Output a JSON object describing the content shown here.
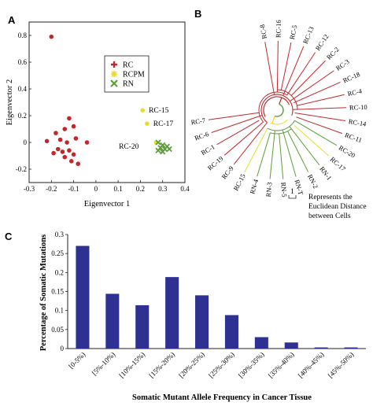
{
  "panels": {
    "a": "A",
    "b": "B",
    "c": "C"
  },
  "chart_data": [
    {
      "type": "scatter",
      "panel": "A",
      "xlabel": "Eigenvector 1",
      "ylabel": "Eigenvector 2",
      "xlim": [
        -0.3,
        0.4
      ],
      "ylim": [
        -0.3,
        0.9
      ],
      "xticks": [
        "-0.3",
        "-0.2",
        "-0.1",
        "0",
        "0.1",
        "0.2",
        "0.3",
        "0.4"
      ],
      "yticks": [
        "-0.2",
        "0",
        "0.2",
        "0.4",
        "0.6",
        "0.8"
      ],
      "xtick_values": [
        -0.3,
        -0.2,
        -0.1,
        0,
        0.1,
        0.2,
        0.3,
        0.4
      ],
      "ytick_values": [
        -0.2,
        0,
        0.2,
        0.4,
        0.6,
        0.8
      ],
      "legend": {
        "placement": "top-right"
      },
      "series": [
        {
          "name": "RC",
          "marker": "plus",
          "color": "#c0282d",
          "points": [
            [
              -0.2,
              0.79
            ],
            [
              -0.12,
              0.18
            ],
            [
              -0.1,
              0.12
            ],
            [
              -0.14,
              0.1
            ],
            [
              -0.18,
              0.07
            ],
            [
              -0.22,
              0.01
            ],
            [
              -0.16,
              0.02
            ],
            [
              -0.13,
              0.0
            ],
            [
              -0.09,
              0.03
            ],
            [
              -0.04,
              0.0
            ],
            [
              -0.17,
              -0.05
            ],
            [
              -0.15,
              -0.07
            ],
            [
              -0.12,
              -0.06
            ],
            [
              -0.1,
              -0.09
            ],
            [
              -0.14,
              -0.11
            ],
            [
              -0.11,
              -0.14
            ],
            [
              -0.08,
              -0.16
            ],
            [
              -0.19,
              -0.08
            ]
          ]
        },
        {
          "name": "RCPM",
          "marker": "circle",
          "color": "#e8dd2a",
          "points": [
            [
              0.21,
              0.24
            ],
            [
              0.23,
              0.14
            ],
            [
              0.27,
              0.0
            ]
          ]
        },
        {
          "name": "RN",
          "marker": "x",
          "color": "#5a9e3a",
          "points": [
            [
              0.28,
              0.0
            ],
            [
              0.3,
              -0.02
            ],
            [
              0.31,
              -0.05
            ],
            [
              0.29,
              -0.04
            ],
            [
              0.32,
              -0.03
            ],
            [
              0.3,
              -0.07
            ],
            [
              0.33,
              -0.05
            ],
            [
              0.28,
              -0.06
            ]
          ]
        }
      ],
      "annotations": [
        {
          "text": "RC-15",
          "x": 0.22,
          "y": 0.24
        },
        {
          "text": "RC-17",
          "x": 0.24,
          "y": 0.14
        },
        {
          "text": "RC-20",
          "x": 0.2,
          "y": -0.03
        }
      ]
    },
    {
      "type": "dendrogram",
      "panel": "B",
      "leaves": [
        {
          "label": "RC-8",
          "color": "#c0282d"
        },
        {
          "label": "RC-16",
          "color": "#c0282d"
        },
        {
          "label": "RC-5",
          "color": "#c0282d"
        },
        {
          "label": "RC-13",
          "color": "#c0282d"
        },
        {
          "label": "RC-12",
          "color": "#c0282d"
        },
        {
          "label": "RC-2",
          "color": "#c0282d"
        },
        {
          "label": "RC-3",
          "color": "#c0282d"
        },
        {
          "label": "RC-18",
          "color": "#c0282d"
        },
        {
          "label": "RC-4",
          "color": "#c0282d"
        },
        {
          "label": "RC-10",
          "color": "#c0282d"
        },
        {
          "label": "RC-14",
          "color": "#c0282d"
        },
        {
          "label": "RC-11",
          "color": "#c0282d"
        },
        {
          "label": "RC-20",
          "color": "#5a9e3a"
        },
        {
          "label": "RC-17",
          "color": "#e8dd2a"
        },
        {
          "label": "RN-1",
          "color": "#5a9e3a"
        },
        {
          "label": "RN-2",
          "color": "#5a9e3a"
        },
        {
          "label": "RN-T",
          "color": "#5a9e3a"
        },
        {
          "label": "RN-5",
          "color": "#5a9e3a"
        },
        {
          "label": "RN-3",
          "color": "#5a9e3a"
        },
        {
          "label": "RN-4",
          "color": "#5a9e3a"
        },
        {
          "label": "RC-15",
          "color": "#e8dd2a"
        },
        {
          "label": "RC-9",
          "color": "#c0282d"
        },
        {
          "label": "RC-19",
          "color": "#c0282d"
        },
        {
          "label": "RC-1",
          "color": "#c0282d"
        },
        {
          "label": "RC-6",
          "color": "#c0282d"
        },
        {
          "label": "RC-7",
          "color": "#c0282d"
        }
      ],
      "scale_bar": {
        "label": "1",
        "text_lines": [
          "Represents the",
          "Euclidean Distance",
          "between Cells"
        ]
      }
    },
    {
      "type": "bar",
      "panel": "C",
      "color": "#2e3192",
      "categories": [
        "[0-5%)",
        "[5%-10%)",
        "[10%-15%)",
        "[15%-20%)",
        "[20%-25%)",
        "[25%-30%)",
        "[30%-35%)",
        "[35%-40%)",
        "[40%-45%)",
        "[45%-50%)"
      ],
      "values": [
        0.27,
        0.144,
        0.114,
        0.188,
        0.14,
        0.088,
        0.03,
        0.016,
        0.003,
        0.003
      ],
      "ylim": [
        0,
        0.3
      ],
      "yticks": [
        "0",
        "0.05",
        "0.1",
        "0.15",
        "0.2",
        "0.25",
        "0.3"
      ],
      "ytick_values": [
        0,
        0.05,
        0.1,
        0.15,
        0.2,
        0.25,
        0.3
      ],
      "xlabel": "Somatic Mutant Allele Frequency in Cancer Tissue",
      "ylabel": "Percentage of Somatic Mutations"
    }
  ]
}
